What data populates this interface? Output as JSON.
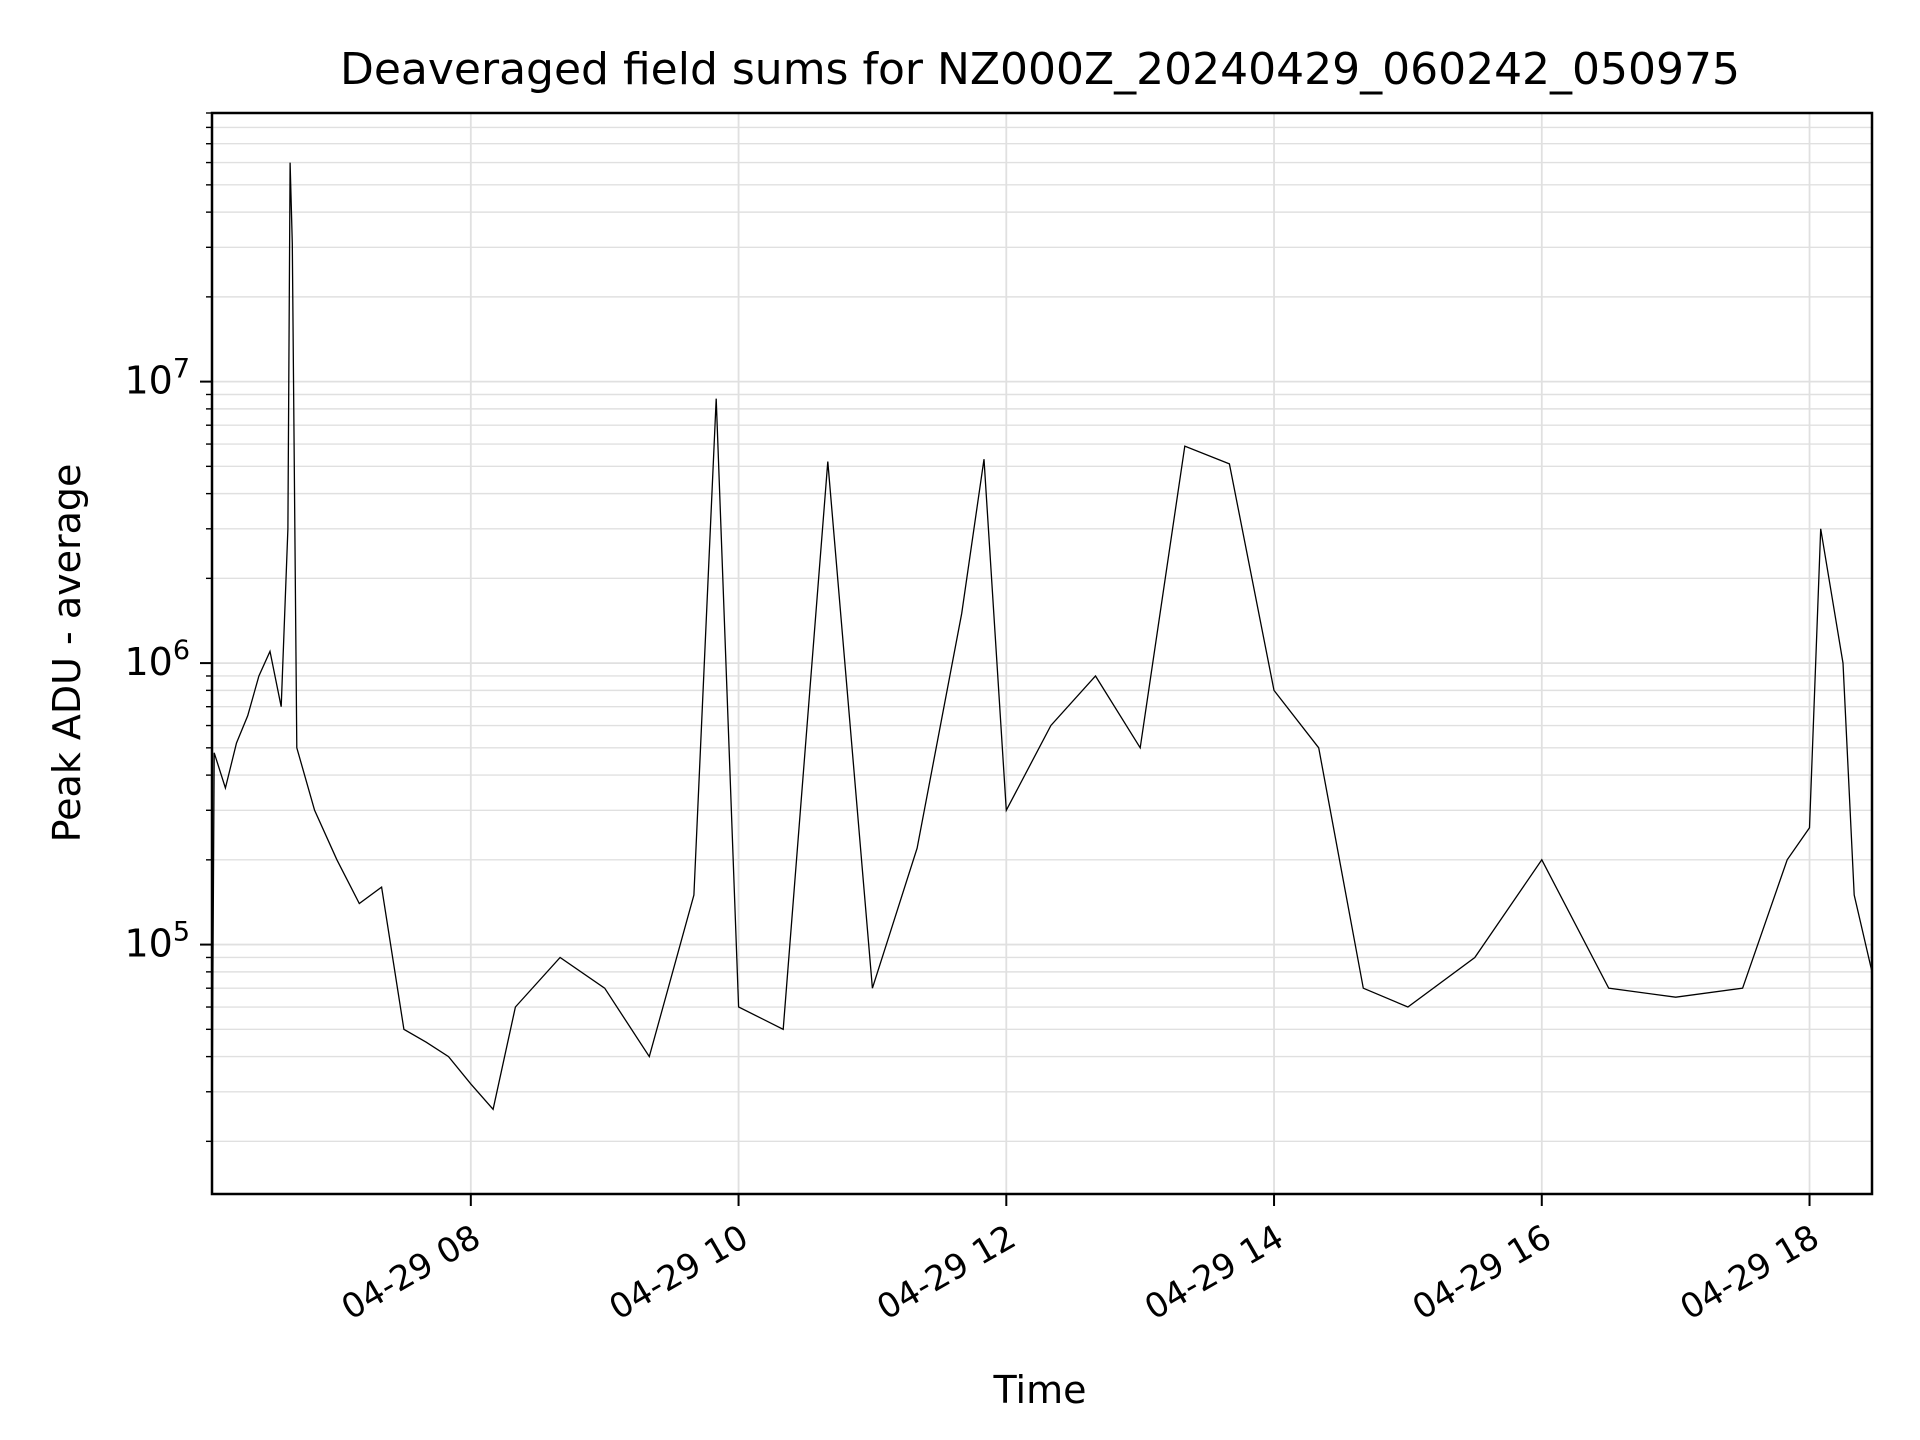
{
  "chart_data": {
    "type": "line",
    "title": "Deaveraged field sums for NZ000Z_20240429_060242_050975",
    "xlabel": "Time",
    "ylabel": "Peak ADU - average",
    "y_scale": "log",
    "grid": true,
    "line_color": "#000000",
    "grid_color": "#e0e0e0",
    "xlim": [
      "2024-04-29 06:04",
      "2024-04-29 18:28"
    ],
    "ylim": [
      13000,
      90000000
    ],
    "x_ticks": [
      {
        "value": "2024-04-29 08:00",
        "label": "04-29 08"
      },
      {
        "value": "2024-04-29 10:00",
        "label": "04-29 10"
      },
      {
        "value": "2024-04-29 12:00",
        "label": "04-29 12"
      },
      {
        "value": "2024-04-29 14:00",
        "label": "04-29 14"
      },
      {
        "value": "2024-04-29 16:00",
        "label": "04-29 16"
      },
      {
        "value": "2024-04-29 18:00",
        "label": "04-29 18"
      }
    ],
    "y_ticks": [
      {
        "value": 100000,
        "base": "10",
        "exp": "5"
      },
      {
        "value": 1000000,
        "base": "10",
        "exp": "6"
      },
      {
        "value": 10000000,
        "base": "10",
        "exp": "7"
      }
    ],
    "series": [
      {
        "values_note_excluded": true,
        "points": [
          [
            "2024-04-29 06:04",
            22000
          ],
          [
            "2024-04-29 06:05",
            480000
          ],
          [
            "2024-04-29 06:10",
            360000
          ],
          [
            "2024-04-29 06:15",
            520000
          ],
          [
            "2024-04-29 06:20",
            650000
          ],
          [
            "2024-04-29 06:25",
            900000
          ],
          [
            "2024-04-29 06:30",
            1100000
          ],
          [
            "2024-04-29 06:35",
            700000
          ],
          [
            "2024-04-29 06:38",
            3000000
          ],
          [
            "2024-04-29 06:39",
            60000000
          ],
          [
            "2024-04-29 06:40",
            31000000
          ],
          [
            "2024-04-29 06:42",
            500000
          ],
          [
            "2024-04-29 06:50",
            300000
          ],
          [
            "2024-04-29 07:00",
            200000
          ],
          [
            "2024-04-29 07:10",
            140000
          ],
          [
            "2024-04-29 07:20",
            160000
          ],
          [
            "2024-04-29 07:30",
            50000
          ],
          [
            "2024-04-29 07:40",
            45000
          ],
          [
            "2024-04-29 07:50",
            40000
          ],
          [
            "2024-04-29 08:00",
            32000
          ],
          [
            "2024-04-29 08:10",
            26000
          ],
          [
            "2024-04-29 08:20",
            60000
          ],
          [
            "2024-04-29 08:40",
            90000
          ],
          [
            "2024-04-29 09:00",
            70000
          ],
          [
            "2024-04-29 09:20",
            40000
          ],
          [
            "2024-04-29 09:40",
            150000
          ],
          [
            "2024-04-29 09:50",
            8700000
          ],
          [
            "2024-04-29 10:00",
            60000
          ],
          [
            "2024-04-29 10:20",
            50000
          ],
          [
            "2024-04-29 10:40",
            5200000
          ],
          [
            "2024-04-29 11:00",
            70000
          ],
          [
            "2024-04-29 11:20",
            220000
          ],
          [
            "2024-04-29 11:40",
            1500000
          ],
          [
            "2024-04-29 11:50",
            5300000
          ],
          [
            "2024-04-29 12:00",
            300000
          ],
          [
            "2024-04-29 12:20",
            600000
          ],
          [
            "2024-04-29 12:40",
            900000
          ],
          [
            "2024-04-29 13:00",
            500000
          ],
          [
            "2024-04-29 13:20",
            5900000
          ],
          [
            "2024-04-29 13:40",
            5100000
          ],
          [
            "2024-04-29 14:00",
            800000
          ],
          [
            "2024-04-29 14:20",
            500000
          ],
          [
            "2024-04-29 14:40",
            70000
          ],
          [
            "2024-04-29 15:00",
            60000
          ],
          [
            "2024-04-29 15:30",
            90000
          ],
          [
            "2024-04-29 16:00",
            200000
          ],
          [
            "2024-04-29 16:30",
            70000
          ],
          [
            "2024-04-29 17:00",
            65000
          ],
          [
            "2024-04-29 17:30",
            70000
          ],
          [
            "2024-04-29 17:50",
            200000
          ],
          [
            "2024-04-29 18:00",
            260000
          ],
          [
            "2024-04-29 18:05",
            3000000
          ],
          [
            "2024-04-29 18:15",
            1000000
          ],
          [
            "2024-04-29 18:20",
            150000
          ],
          [
            "2024-04-29 18:28",
            80000
          ]
        ]
      }
    ]
  }
}
